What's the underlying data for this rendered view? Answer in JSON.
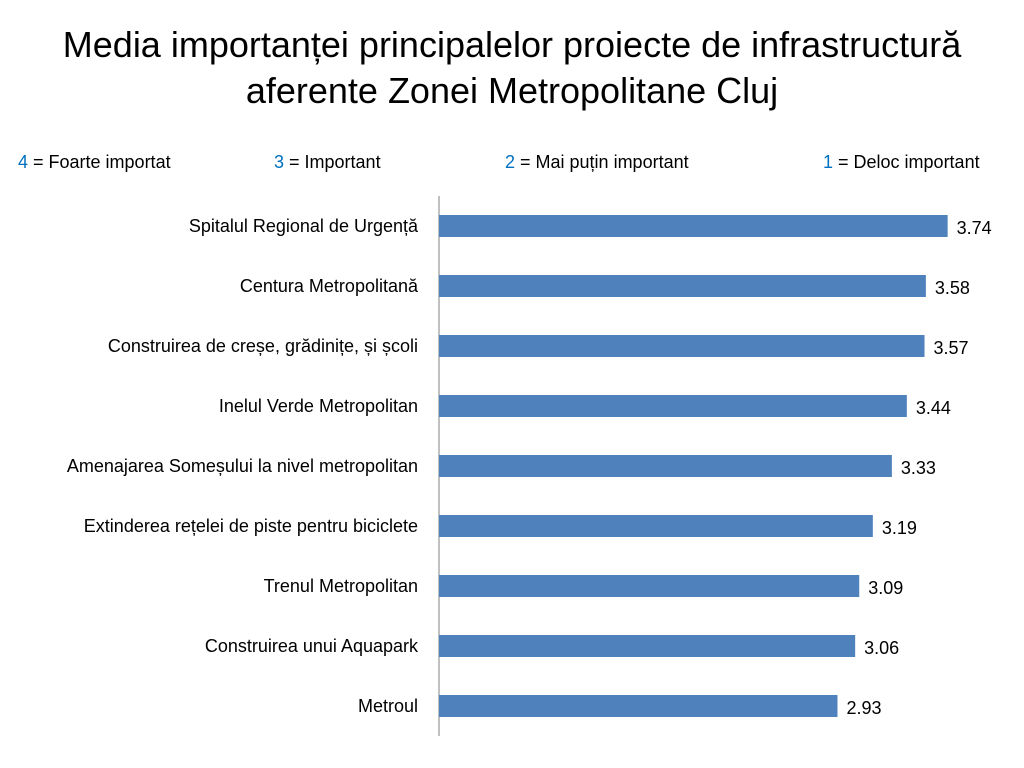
{
  "title": {
    "line1": "Media importanței principalelor proiecte de infrastructură",
    "line2": "aferente Zonei Metropolitane Cluj"
  },
  "legend": [
    {
      "num": "4",
      "text": " = Foarte importat"
    },
    {
      "num": "3",
      "text": " = Important"
    },
    {
      "num": "2",
      "text": " = Mai puțin important"
    },
    {
      "num": "1",
      "text": " = Deloc important"
    }
  ],
  "colors": {
    "bar": "#4f81bd",
    "axis": "#808080",
    "legend_number": "#0070c0"
  },
  "chart_data": {
    "type": "bar",
    "orientation": "horizontal",
    "categories": [
      "Spitalul Regional de Urgență",
      "Centura Metropolitană",
      "Construirea de creșe, grădinițe, și școli",
      "Inelul Verde Metropolitan",
      "Amenajarea Someșului la nivel metropolitan",
      "Extinderea rețelei de piste pentru biciclete",
      "Trenul Metropolitan",
      "Construirea unui Aquapark",
      "Metroul"
    ],
    "values": [
      3.74,
      3.58,
      3.57,
      3.44,
      3.33,
      3.19,
      3.09,
      3.06,
      2.93
    ],
    "value_labels": [
      "3.74",
      "3.58",
      "3.57",
      "3.44",
      "3.33",
      "3.19",
      "3.09",
      "3.06",
      "2.93"
    ],
    "xlim": [
      0,
      4
    ],
    "grid": false,
    "legend": "none"
  }
}
